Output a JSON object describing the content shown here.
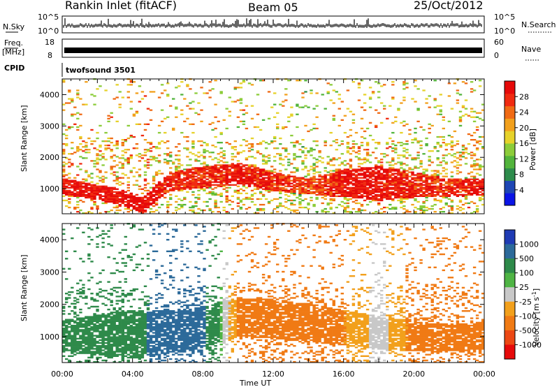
{
  "header": {
    "title": "Rankin Inlet (fitACF)",
    "beam": "Beam 05",
    "date": "25/Oct/2012"
  },
  "strip_labels": {
    "nsky": "N.Sky",
    "freq_line1": "Freq.",
    "freq_line2": "[MHz]",
    "cpid": "CPID",
    "nsearch": "N.Search",
    "nave": "Nave",
    "cpid_value": "twofsound 3501"
  },
  "strip_ticks": {
    "nsky_left": [
      "10^5",
      "10^0"
    ],
    "nsky_right": [
      "10^5",
      "10^0"
    ],
    "freq_left": [
      "18",
      "8"
    ],
    "freq_right": [
      "60",
      "0"
    ]
  },
  "colors": {
    "power": [
      "#0a14e6",
      "#1e46b4",
      "#2e8c4c",
      "#52b43c",
      "#8ccc3a",
      "#e6d22a",
      "#f2a01c",
      "#f06a14",
      "#f02a10",
      "#e60a0a"
    ],
    "velocity": [
      "#1f3bb4",
      "#2c6a9a",
      "#2e8a4a",
      "#4fb444",
      "#c8c8c8",
      "#f2a01c",
      "#f07a14",
      "#ec4814",
      "#e60a0a"
    ]
  },
  "chart_data": [
    {
      "type": "heatmap",
      "name": "power",
      "xlabel": "",
      "ylabel": "Slant Range [km]",
      "xlim_hours": [
        0,
        24
      ],
      "ylim": [
        200,
        4500
      ],
      "yticks": [
        1000,
        2000,
        3000,
        4000
      ],
      "colorbar": {
        "label": "Power [dB]",
        "range": [
          0,
          32
        ],
        "ticks": [
          "4",
          "8",
          "12",
          "16",
          "20",
          "24",
          "28"
        ]
      },
      "dominant_band": [
        {
          "time": 0,
          "range_low": 800,
          "range_high": 1300,
          "power_db": 28
        },
        {
          "time": 3,
          "range_low": 500,
          "range_high": 1000,
          "power_db": 28
        },
        {
          "time": 4.5,
          "range_low": 200,
          "range_high": 700,
          "power_db": 30
        },
        {
          "time": 6,
          "range_low": 900,
          "range_high": 1500,
          "power_db": 26
        },
        {
          "time": 8,
          "range_low": 1000,
          "range_high": 1700,
          "power_db": 26
        },
        {
          "time": 10,
          "range_low": 1100,
          "range_high": 1800,
          "power_db": 28
        },
        {
          "time": 12,
          "range_low": 900,
          "range_high": 1500,
          "power_db": 26
        },
        {
          "time": 14,
          "range_low": 800,
          "range_high": 1300,
          "power_db": 24
        },
        {
          "time": 16,
          "range_low": 700,
          "range_high": 1600,
          "power_db": 28
        },
        {
          "time": 18,
          "range_low": 600,
          "range_high": 1700,
          "power_db": 28
        },
        {
          "time": 20,
          "range_low": 700,
          "range_high": 1500,
          "power_db": 26
        },
        {
          "time": 22,
          "range_low": 700,
          "range_high": 1300,
          "power_db": 26
        },
        {
          "time": 24,
          "range_low": 800,
          "range_high": 1300,
          "power_db": 28
        }
      ]
    },
    {
      "type": "heatmap",
      "name": "velocity",
      "xlabel": "Time UT",
      "ylabel": "Slant Range [km]",
      "xlim_hours": [
        0,
        24
      ],
      "ylim": [
        200,
        4500
      ],
      "yticks": [
        1000,
        2000,
        3000,
        4000
      ],
      "xticks": [
        "00:00",
        "04:00",
        "08:00",
        "12:00",
        "16:00",
        "20:00",
        "00:00"
      ],
      "colorbar": {
        "label": "Velocity [m s^-1]",
        "ticks": [
          "1000",
          "500",
          "100",
          "25",
          "-25",
          "-100",
          "-500",
          "-1000"
        ]
      },
      "dominant_band": [
        {
          "time": 0,
          "range_low": 500,
          "range_high": 1500,
          "velocity": 150
        },
        {
          "time": 4,
          "range_low": 300,
          "range_high": 1800,
          "velocity": 200
        },
        {
          "time": 7,
          "range_low": 500,
          "range_high": 1800,
          "velocity": 600
        },
        {
          "time": 10,
          "range_low": 1000,
          "range_high": 2200,
          "velocity": -200
        },
        {
          "time": 14,
          "range_low": 800,
          "range_high": 2000,
          "velocity": -300
        },
        {
          "time": 18,
          "range_low": 600,
          "range_high": 1600,
          "velocity": 0
        },
        {
          "time": 21,
          "range_low": 500,
          "range_high": 1400,
          "velocity": -300
        },
        {
          "time": 24,
          "range_low": 600,
          "range_high": 1400,
          "velocity": -250
        }
      ]
    }
  ]
}
